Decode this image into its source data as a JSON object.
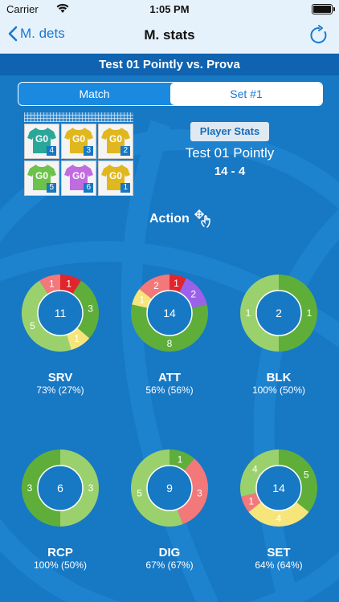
{
  "status_bar": {
    "carrier": "Carrier",
    "time": "1:05 PM"
  },
  "navbar": {
    "back_label": "M. dets",
    "title": "M. stats",
    "refresh_icon": "refresh-icon"
  },
  "match_title": "Test 01 Pointly vs. Prova",
  "segments": [
    {
      "label": "Match",
      "selected": false
    },
    {
      "label": "Set  #1",
      "selected": true
    }
  ],
  "lineup": {
    "players": [
      {
        "code": "G0",
        "number": "4",
        "color": "#29a89a"
      },
      {
        "code": "G0",
        "number": "3",
        "color": "#e0b71e"
      },
      {
        "code": "G0",
        "number": "2",
        "color": "#e0b71e"
      },
      {
        "code": "G0",
        "number": "5",
        "color": "#6cc24a"
      },
      {
        "code": "G0",
        "number": "6",
        "color": "#c16be0"
      },
      {
        "code": "G0",
        "number": "1",
        "color": "#e0b71e"
      }
    ]
  },
  "player_stats_button": "Player Stats",
  "team_name": "Test 01 Pointly",
  "score": "14 - 4",
  "action": {
    "label": "Action",
    "icon": "move-hand-icon"
  },
  "colors": {
    "ring_light_green": "#9bd16d",
    "ring_green": "#5fae3a",
    "ring_yellow": "#f6e57a",
    "ring_pink": "#f2787a",
    "ring_red": "#e0262c",
    "ring_purple": "#9a62e8",
    "inner_blue": "#1778c4"
  },
  "stats": [
    {
      "name": "SRV",
      "pct": "73% (27%)",
      "total": "11",
      "segments": [
        {
          "value": 1,
          "label": "1",
          "color": "#e0262c"
        },
        {
          "value": 3,
          "label": "3",
          "color": "#5fae3a"
        },
        {
          "value": 1,
          "label": "1",
          "color": "#f6e57a"
        },
        {
          "value": 5,
          "label": "5",
          "color": "#9bd16d"
        },
        {
          "value": 1,
          "label": "1",
          "color": "#f2787a"
        }
      ]
    },
    {
      "name": "ATT",
      "pct": "56% (56%)",
      "total": "14",
      "segments": [
        {
          "value": 1,
          "label": "1",
          "color": "#e0262c"
        },
        {
          "value": 2,
          "label": "2",
          "color": "#9a62e8"
        },
        {
          "value": 8,
          "label": "8",
          "color": "#5fae3a"
        },
        {
          "value": 1,
          "label": "1",
          "color": "#f6e57a"
        },
        {
          "value": 2,
          "label": "2",
          "color": "#f2787a"
        }
      ]
    },
    {
      "name": "BLK",
      "pct": "100% (50%)",
      "total": "2",
      "segments": [
        {
          "value": 1,
          "label": "1",
          "color": "#5fae3a"
        },
        {
          "value": 1,
          "label": "1",
          "color": "#9bd16d"
        }
      ]
    },
    {
      "name": "RCP",
      "pct": "100% (50%)",
      "total": "6",
      "segments": [
        {
          "value": 3,
          "label": "3",
          "color": "#9bd16d"
        },
        {
          "value": 3,
          "label": "3",
          "color": "#5fae3a"
        }
      ]
    },
    {
      "name": "DIG",
      "pct": "67% (67%)",
      "total": "9",
      "segments": [
        {
          "value": 1,
          "label": "1",
          "color": "#5fae3a"
        },
        {
          "value": 3,
          "label": "3",
          "color": "#f2787a"
        },
        {
          "value": 5,
          "label": "5",
          "color": "#9bd16d"
        }
      ]
    },
    {
      "name": "SET",
      "pct": "64% (64%)",
      "total": "14",
      "segments": [
        {
          "value": 5,
          "label": "5",
          "color": "#5fae3a"
        },
        {
          "value": 4,
          "label": "4",
          "color": "#f6e57a"
        },
        {
          "value": 1,
          "label": "1",
          "color": "#f2787a"
        },
        {
          "value": 4,
          "label": "4",
          "color": "#9bd16d"
        }
      ]
    }
  ]
}
